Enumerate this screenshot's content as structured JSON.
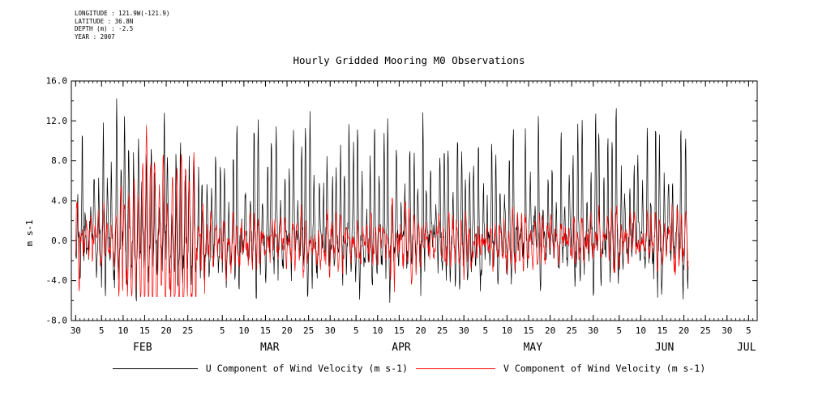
{
  "header": {
    "lines": [
      "LONGITUDE : 121.9W(-121.9)",
      "LATITUDE : 36.8N",
      "DEPTH (m) : -2.5",
      "YEAR : 2007"
    ]
  },
  "chart_data": {
    "type": "line",
    "title": "Hourly Gridded Mooring M0 Observations",
    "ylabel": "m s-1",
    "ylim": [
      -8.0,
      16.0
    ],
    "yticks": [
      16.0,
      12.0,
      8.0,
      4.0,
      0.0,
      -4.0,
      -8.0
    ],
    "ytick_labels": [
      "16.0",
      "12.0",
      "8.0",
      "4.0",
      "0.0",
      "-4.0",
      "-8.0"
    ],
    "y_minor_step": 2,
    "grid": false,
    "legend_position": "bottom",
    "x_axis": {
      "start": "30-Jan-2007",
      "end": "7-Jul-2007",
      "day_ticks": [
        {
          "label": "30",
          "day": 0
        },
        {
          "label": "5",
          "day": 6
        },
        {
          "label": "10",
          "day": 11
        },
        {
          "label": "15",
          "day": 16
        },
        {
          "label": "20",
          "day": 21
        },
        {
          "label": "25",
          "day": 26
        },
        {
          "label": "5",
          "day": 34
        },
        {
          "label": "10",
          "day": 39
        },
        {
          "label": "15",
          "day": 44
        },
        {
          "label": "20",
          "day": 49
        },
        {
          "label": "25",
          "day": 54
        },
        {
          "label": "30",
          "day": 59
        },
        {
          "label": "5",
          "day": 65
        },
        {
          "label": "10",
          "day": 70
        },
        {
          "label": "15",
          "day": 75
        },
        {
          "label": "20",
          "day": 80
        },
        {
          "label": "25",
          "day": 85
        },
        {
          "label": "30",
          "day": 90
        },
        {
          "label": "5",
          "day": 95
        },
        {
          "label": "10",
          "day": 100
        },
        {
          "label": "15",
          "day": 105
        },
        {
          "label": "20",
          "day": 110
        },
        {
          "label": "25",
          "day": 115
        },
        {
          "label": "30",
          "day": 120
        },
        {
          "label": "5",
          "day": 126
        },
        {
          "label": "10",
          "day": 131
        },
        {
          "label": "15",
          "day": 136
        },
        {
          "label": "20",
          "day": 141
        },
        {
          "label": "25",
          "day": 146
        },
        {
          "label": "30",
          "day": 151
        },
        {
          "label": "5",
          "day": 156
        }
      ],
      "months": [
        {
          "label": "FEB",
          "day": 15.5
        },
        {
          "label": "MAR",
          "day": 45
        },
        {
          "label": "APR",
          "day": 75.5
        },
        {
          "label": "MAY",
          "day": 106
        },
        {
          "label": "JUN",
          "day": 136.5
        },
        {
          "label": "JUL",
          "day": 155.5
        }
      ]
    },
    "series": [
      {
        "name": "U Component of Wind Velocity (m s-1)",
        "color": "#000000",
        "approx_range": [
          -7.7,
          15.1
        ],
        "data_span_days": [
          0,
          142
        ],
        "synthesis": {
          "seed": 1234,
          "mean": 0.2,
          "ar": 0.55,
          "noise": 1.4,
          "shape": "spiky",
          "amp_min": 2.5,
          "amp_max": 12.5,
          "neg_rebound": 0.38,
          "min": -7.7,
          "max": 15.1,
          "burst": null,
          "burst_chance": 0,
          "burst_mult": 1
        }
      },
      {
        "name": "V Component of Wind Velocity (m s-1)",
        "color": "#ff0000",
        "approx_range": [
          -5.6,
          12.3
        ],
        "data_span_days": [
          0,
          142
        ],
        "synthesis": {
          "seed": 777,
          "mean": -0.1,
          "ar": 0.55,
          "noise": 1.05,
          "shape": "sine",
          "amp_min": 0.4,
          "amp_max": 2.8,
          "neg_rebound": 0,
          "min": -5.6,
          "max": 12.3,
          "burst": {
            "start_day": 9,
            "end_day": 27,
            "amp_min": 3.0,
            "amp_max": 10.0
          },
          "burst_chance": 0.07,
          "burst_mult": 2.2
        }
      }
    ]
  }
}
